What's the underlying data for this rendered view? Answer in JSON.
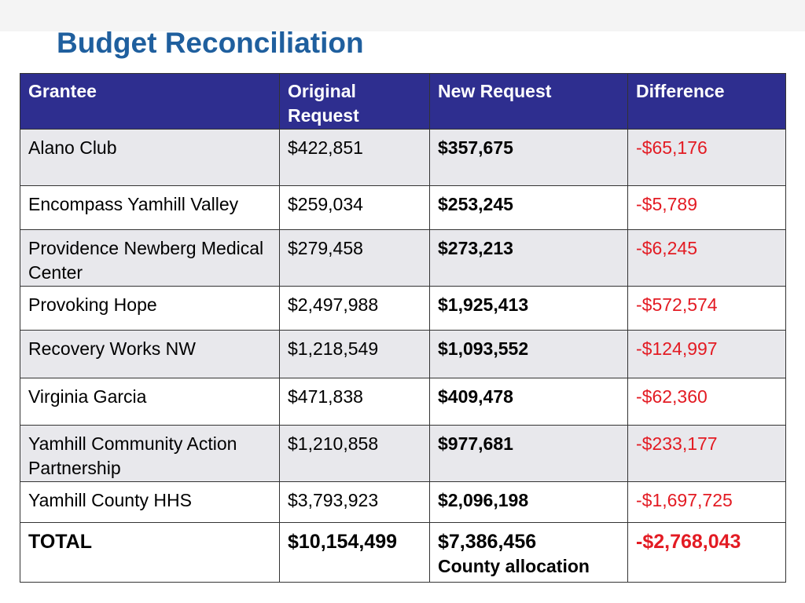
{
  "title": "Budget Reconciliation",
  "table": {
    "headers": [
      "Grantee",
      "Original Request",
      "New Request",
      "Difference"
    ],
    "rows": [
      {
        "grantee": "Alano Club",
        "original": "$422,851",
        "new": "$357,675",
        "difference": "-$65,176"
      },
      {
        "grantee": "Encompass Yamhill Valley",
        "original": "$259,034",
        "new": "$253,245",
        "difference": "-$5,789"
      },
      {
        "grantee": "Providence Newberg Medical Center",
        "original": "$279,458",
        "new": "$273,213",
        "difference": "-$6,245"
      },
      {
        "grantee": "Provoking Hope",
        "original": "$2,497,988",
        "new": "$1,925,413",
        "difference": "-$572,574"
      },
      {
        "grantee": "Recovery Works NW",
        "original": "$1,218,549",
        "new": "$1,093,552",
        "difference": "-$124,997"
      },
      {
        "grantee": "Virginia Garcia",
        "original": "$471,838",
        "new": "$409,478",
        "difference": "-$62,360"
      },
      {
        "grantee": "Yamhill Community Action Partnership",
        "original": "$1,210,858",
        "new": "$977,681",
        "difference": "-$233,177"
      },
      {
        "grantee": "Yamhill County HHS",
        "original": "$3,793,923",
        "new": "$2,096,198",
        "difference": "-$1,697,725"
      }
    ],
    "total": {
      "label": "TOTAL",
      "original": "$10,154,499",
      "new": "$7,386,456",
      "new_note": "County allocation",
      "difference": "-$2,768,043"
    }
  },
  "colors": {
    "title": "#1f5f9e",
    "header_bg": "#2e2e8f",
    "negative": "#e31b23",
    "row_shade": "#e8e8ec"
  }
}
